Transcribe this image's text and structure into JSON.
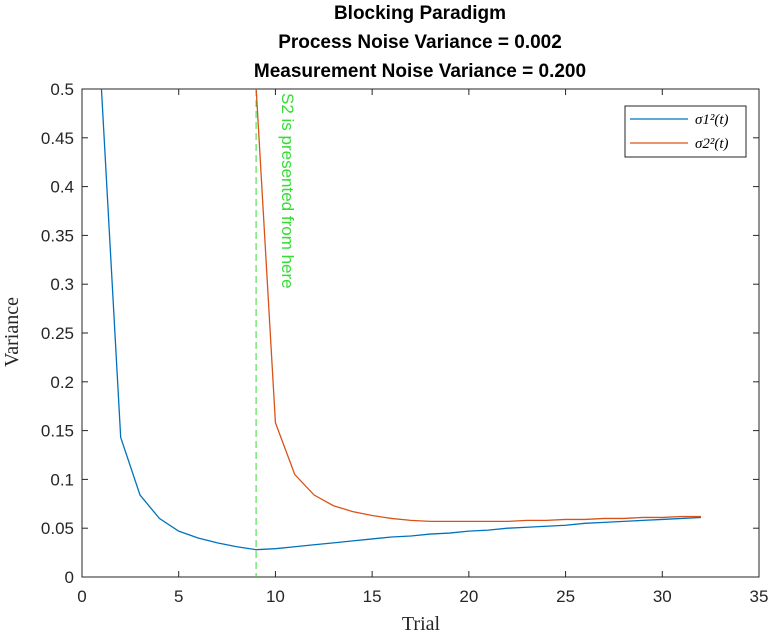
{
  "chart_data": {
    "type": "line",
    "title": [
      "Blocking Paradigm",
      "Process Noise Variance = 0.002",
      "Measurement Noise Variance = 0.200"
    ],
    "xlabel": "Trial",
    "ylabel": "Variance",
    "xlim": [
      0,
      35
    ],
    "ylim": [
      0,
      0.5
    ],
    "xticks": [
      0,
      5,
      10,
      15,
      20,
      25,
      30,
      35
    ],
    "yticks": [
      0,
      0.05,
      0.1,
      0.15,
      0.2,
      0.25,
      0.3,
      0.35,
      0.4,
      0.45,
      0.5
    ],
    "grid": false,
    "legend_position": "top-right",
    "series": [
      {
        "name": "σ1²(t)",
        "color": "#0072BD",
        "x": [
          1,
          2,
          3,
          4,
          5,
          6,
          7,
          8,
          9,
          10,
          11,
          12,
          13,
          14,
          15,
          16,
          17,
          18,
          19,
          20,
          21,
          22,
          23,
          24,
          25,
          26,
          27,
          28,
          29,
          30,
          31,
          32
        ],
        "y": [
          0.502,
          0.143,
          0.084,
          0.06,
          0.047,
          0.04,
          0.035,
          0.031,
          0.028,
          0.029,
          0.031,
          0.033,
          0.035,
          0.037,
          0.039,
          0.041,
          0.042,
          0.044,
          0.045,
          0.047,
          0.048,
          0.05,
          0.051,
          0.052,
          0.053,
          0.055,
          0.056,
          0.057,
          0.058,
          0.059,
          0.06,
          0.061
        ]
      },
      {
        "name": "σ2²(t)",
        "color": "#D95319",
        "x": [
          9,
          10,
          11,
          12,
          13,
          14,
          15,
          16,
          17,
          18,
          19,
          20,
          21,
          22,
          23,
          24,
          25,
          26,
          27,
          28,
          29,
          30,
          31,
          32
        ],
        "y": [
          0.502,
          0.158,
          0.105,
          0.084,
          0.073,
          0.067,
          0.063,
          0.06,
          0.058,
          0.057,
          0.057,
          0.057,
          0.057,
          0.057,
          0.058,
          0.058,
          0.059,
          0.059,
          0.06,
          0.06,
          0.061,
          0.061,
          0.062,
          0.062
        ]
      }
    ],
    "annotation": {
      "text": "S2 is presented from here",
      "x": 9,
      "color": "#33dd33"
    }
  }
}
